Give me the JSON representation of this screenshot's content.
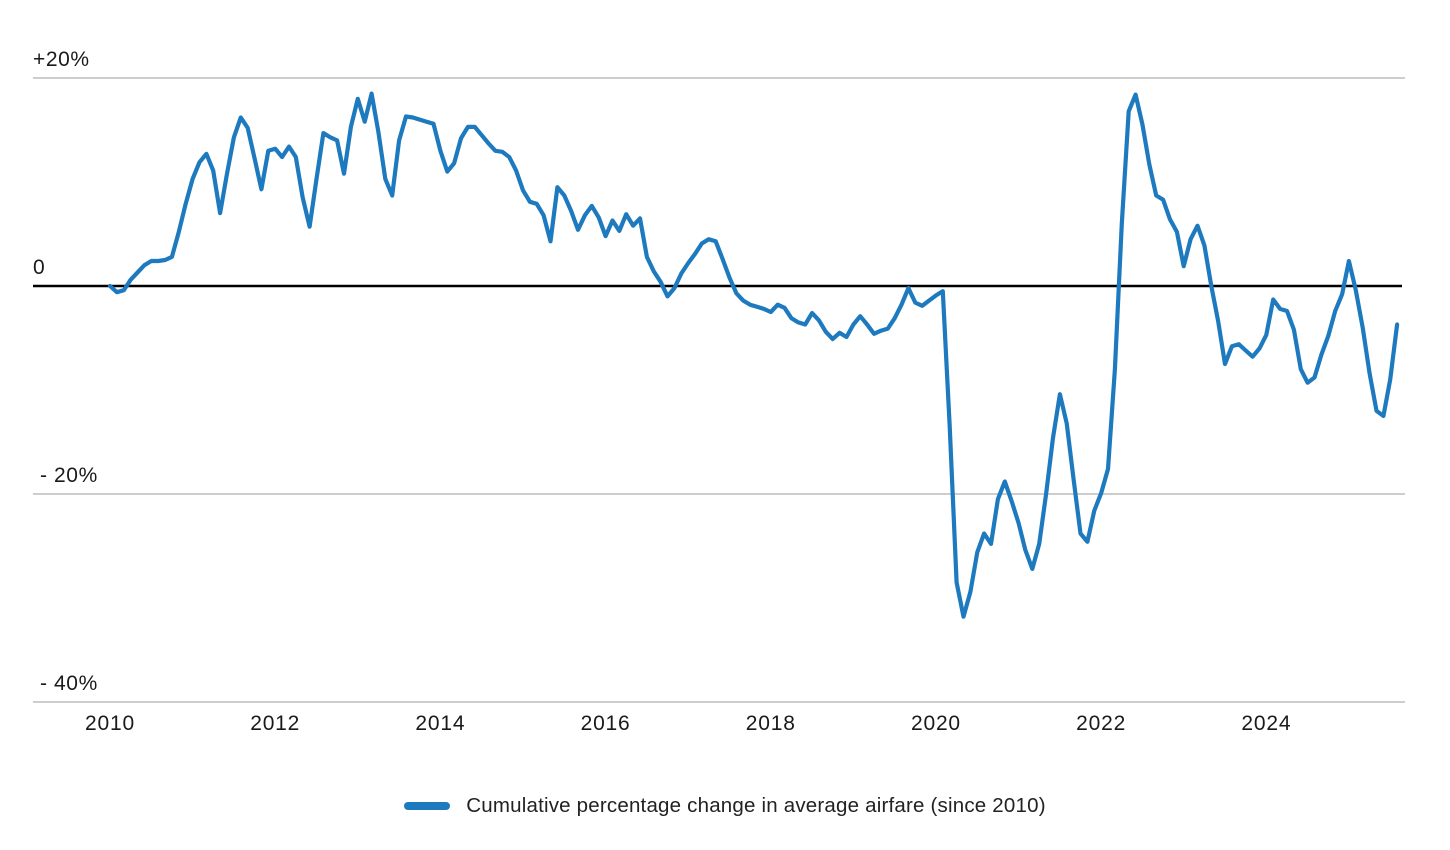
{
  "chart_data": {
    "type": "line",
    "title": "",
    "unit": "%",
    "frequency": "monthly",
    "x_start": {
      "year": 2010,
      "month": 1
    },
    "x_end": {
      "year": 2025,
      "month": 8
    },
    "x_tick_labels": [
      "2010",
      "2012",
      "2014",
      "2016",
      "2018",
      "2020",
      "2022",
      "2024"
    ],
    "x_tick_years": [
      2010,
      2012,
      2014,
      2016,
      2018,
      2020,
      2022,
      2024
    ],
    "y_ticks": [
      {
        "value": 20,
        "label": "+20%"
      },
      {
        "value": 0,
        "label": "0"
      },
      {
        "value": -20,
        "label": "- 20%"
      },
      {
        "value": -40,
        "label": "- 40%"
      }
    ],
    "ylim": [
      -42,
      22
    ],
    "grid": "horizontal-only",
    "zero_baseline": true,
    "legend_position": "bottom-center",
    "line_color": "#1e7abf",
    "zero_line_color": "#000000",
    "grid_color": "#cdcdcd",
    "series": [
      {
        "name": "Cumulative percentage change in average airfare (since 2010)",
        "values": [
          0.0,
          -0.6,
          -0.4,
          0.6,
          1.3,
          2.0,
          2.4,
          2.4,
          2.5,
          2.8,
          5.2,
          7.9,
          10.3,
          11.9,
          12.7,
          11.1,
          7.0,
          10.8,
          14.3,
          16.2,
          15.2,
          12.3,
          9.3,
          13.0,
          13.2,
          12.4,
          13.4,
          12.4,
          8.5,
          5.7,
          10.3,
          14.7,
          14.3,
          14.0,
          10.8,
          15.3,
          18.0,
          15.8,
          18.5,
          14.8,
          10.3,
          8.7,
          14.0,
          16.3,
          16.2,
          16.0,
          15.8,
          15.6,
          13.0,
          11.0,
          11.8,
          14.2,
          15.3,
          15.3,
          14.5,
          13.7,
          13.0,
          12.9,
          12.4,
          11.1,
          9.2,
          8.1,
          7.9,
          6.8,
          4.3,
          9.5,
          8.7,
          7.2,
          5.4,
          6.8,
          7.7,
          6.6,
          4.8,
          6.3,
          5.3,
          6.9,
          5.8,
          6.5,
          2.8,
          1.4,
          0.4,
          -1.0,
          -0.2,
          1.2,
          2.2,
          3.1,
          4.1,
          4.5,
          4.3,
          2.6,
          0.8,
          -0.7,
          -1.4,
          -1.8,
          -2.0,
          -2.2,
          -2.5,
          -1.8,
          -2.1,
          -3.1,
          -3.5,
          -3.7,
          -2.6,
          -3.3,
          -4.4,
          -5.1,
          -4.5,
          -4.9,
          -3.7,
          -2.9,
          -3.7,
          -4.6,
          -4.3,
          -4.1,
          -3.1,
          -1.8,
          -0.2,
          -1.6,
          -1.9,
          -1.4,
          -0.9,
          -0.5,
          -13.5,
          -28.5,
          -31.8,
          -29.4,
          -25.6,
          -23.8,
          -24.8,
          -20.5,
          -18.8,
          -20.7,
          -22.8,
          -25.4,
          -27.2,
          -24.8,
          -20.0,
          -14.6,
          -10.4,
          -13.2,
          -18.6,
          -23.8,
          -24.6,
          -21.6,
          -19.9,
          -17.6,
          -8.0,
          6.0,
          16.8,
          18.4,
          15.5,
          11.7,
          8.7,
          8.3,
          6.4,
          5.2,
          1.9,
          4.5,
          5.8,
          3.9,
          0.0,
          -3.4,
          -7.5,
          -5.8,
          -5.6,
          -6.2,
          -6.8,
          -6.0,
          -4.7,
          -1.3,
          -2.2,
          -2.4,
          -4.2,
          -8.0,
          -9.3,
          -8.8,
          -6.6,
          -4.8,
          -2.4,
          -0.8,
          2.4,
          -0.4,
          -4.0,
          -8.4,
          -12.0,
          -12.5,
          -9.0,
          -3.7
        ]
      }
    ]
  },
  "legend": {
    "label": "Cumulative percentage change in average airfare (since 2010)",
    "swatch_color": "#1e7abf"
  }
}
